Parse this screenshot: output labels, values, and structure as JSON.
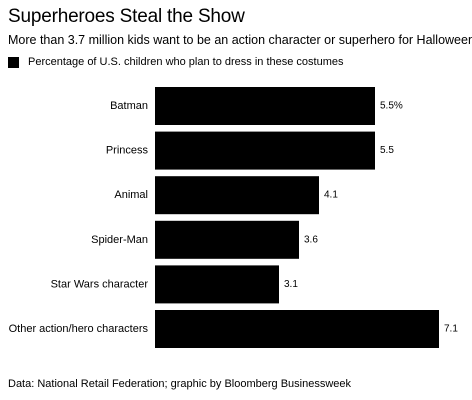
{
  "chart_data": {
    "type": "bar",
    "orientation": "horizontal",
    "title": "Superheroes Steal the Show",
    "subtitle": "More than 3.7 million kids want to be an action character or superhero for Halloween",
    "legend": {
      "label": "Percentage of U.S. children who plan to dress in these costumes",
      "placement": "top-left"
    },
    "categories": [
      "Batman",
      "Princess",
      "Animal",
      "Spider-Man",
      "Star Wars character",
      "Other action/hero characters"
    ],
    "values": [
      5.5,
      5.5,
      4.1,
      3.6,
      3.1,
      7.1
    ],
    "value_labels": [
      "5.5%",
      "5.5",
      "4.1",
      "3.6",
      "3.1",
      "7.1"
    ],
    "series_color": "#000000",
    "xlim": [
      0,
      7.1
    ],
    "grid": false,
    "source": "Data: National Retail Federation; graphic by Bloomberg Businessweek"
  }
}
